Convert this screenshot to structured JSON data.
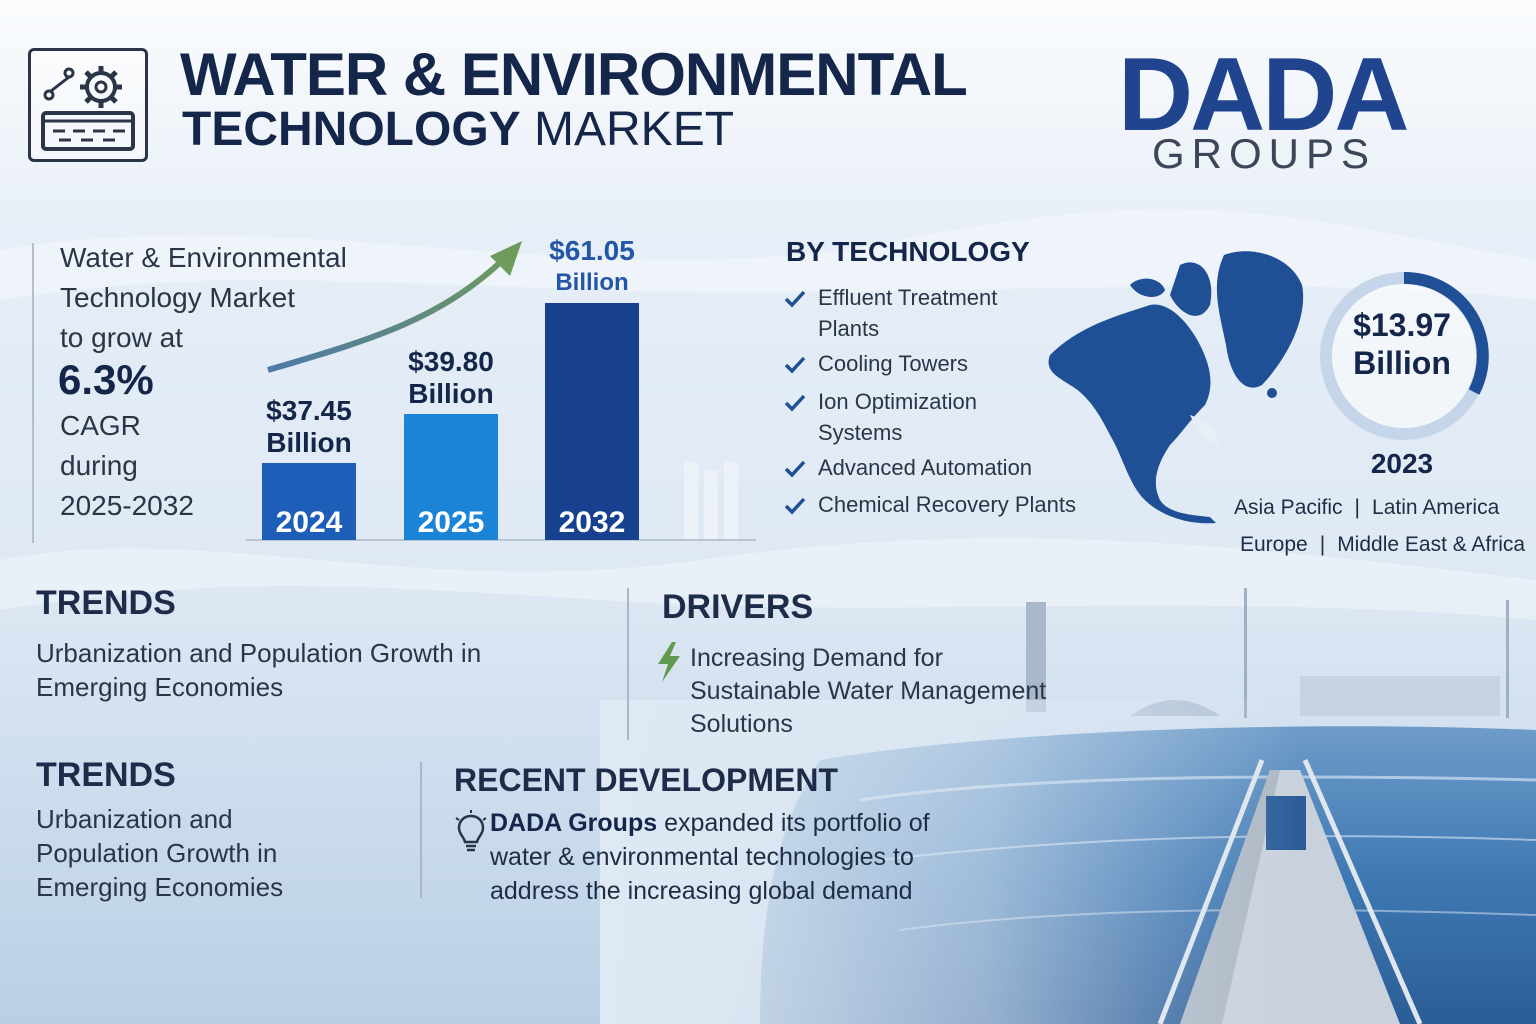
{
  "header": {
    "title_line1": "WATER & ENVIRONMENTAL",
    "title_line2_bold": "TECHNOLOGY",
    "title_line2_rest": " MARKET",
    "brand_name": "DADA",
    "brand_sub": "GROUPS"
  },
  "growth": {
    "line1": "Water & Environmental",
    "line2": "Technology Market",
    "line3": "to grow at",
    "cagr_value": "6.3%",
    "cagr_label": "CAGR",
    "during": "during",
    "period": "2025-2032"
  },
  "chart_data": {
    "type": "bar",
    "categories": [
      "2024",
      "2025",
      "2032"
    ],
    "values": [
      37.45,
      39.8,
      61.05
    ],
    "value_labels": [
      "$37.45",
      "$39.80",
      "$61.05"
    ],
    "unit_label": "Billion",
    "colors": [
      "#1d5fb8",
      "#1b84d6",
      "#17418f"
    ]
  },
  "technology": {
    "title": "BY TECHNOLOGY",
    "items": [
      "Effluent Treatment Plants",
      "Cooling Towers",
      "Ion Optimization Systems",
      "Advanced Automation",
      "Chemical Recovery Plants"
    ]
  },
  "region": {
    "value_line1": "$13.97",
    "value_line2": "Billion",
    "year": "2023",
    "row1": [
      "Asia Pacific",
      "Latin America"
    ],
    "row2": [
      "Europe",
      "Middle East & Africa"
    ],
    "separator": "|",
    "map_icon": "north-america-map"
  },
  "trends_top": {
    "title": "TRENDS",
    "body": "Urbanization and Population Growth in Emerging Economies"
  },
  "drivers": {
    "title": "DRIVERS",
    "body": "Increasing Demand for Sustainable Water Management Solutions",
    "icon": "lightning-icon"
  },
  "trends_bottom": {
    "title": "TRENDS",
    "body": "Urbanization and Population Growth in Emerging Economies"
  },
  "development": {
    "title": "RECENT DEVELOPMENT",
    "company": "DADA Groups",
    "body": " expanded its portfolio of water & environmental technologies to address the increasing global demand",
    "icon": "lightbulb-icon"
  },
  "colors": {
    "navy": "#14264a",
    "brand_blue": "#21448f",
    "arrow_green": "#5f8f5a"
  }
}
